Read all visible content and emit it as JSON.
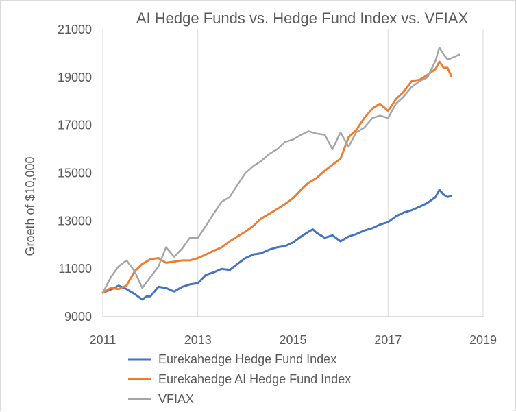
{
  "chart_data": {
    "type": "line",
    "title": "AI Hedge Funds vs. Hedge Fund Index vs. VFIAX",
    "ylabel": "Groeth of $10,000",
    "xlabel": "",
    "xlim": [
      2011,
      2019
    ],
    "ylim": [
      9000,
      21000
    ],
    "x_ticks": [
      "2011",
      "2013",
      "2015",
      "2017",
      "2019"
    ],
    "y_ticks": [
      "9000",
      "11000",
      "13000",
      "15000",
      "17000",
      "19000",
      "21000"
    ],
    "grid": "vertical",
    "legend_position": "bottom",
    "series": [
      {
        "name": "Eurekahedge Hedge Fund Index",
        "color": "#4472c4",
        "x": [
          2011.0,
          2011.25,
          2011.33,
          2011.5,
          2011.67,
          2011.83,
          2011.92,
          2012.0,
          2012.17,
          2012.33,
          2012.5,
          2012.67,
          2012.83,
          2013.0,
          2013.17,
          2013.33,
          2013.5,
          2013.67,
          2013.83,
          2014.0,
          2014.17,
          2014.33,
          2014.5,
          2014.67,
          2014.83,
          2015.0,
          2015.17,
          2015.33,
          2015.42,
          2015.5,
          2015.67,
          2015.83,
          2016.0,
          2016.17,
          2016.33,
          2016.5,
          2016.67,
          2016.83,
          2017.0,
          2017.17,
          2017.33,
          2017.5,
          2017.67,
          2017.83,
          2018.0,
          2018.08,
          2018.17,
          2018.25,
          2018.33
        ],
        "values": [
          10000,
          10200,
          10300,
          10150,
          9950,
          9720,
          9850,
          9850,
          10250,
          10200,
          10050,
          10250,
          10350,
          10400,
          10750,
          10850,
          11000,
          10950,
          11200,
          11450,
          11600,
          11650,
          11800,
          11900,
          11950,
          12100,
          12350,
          12550,
          12650,
          12500,
          12300,
          12400,
          12150,
          12350,
          12450,
          12600,
          12700,
          12850,
          12950,
          13200,
          13350,
          13450,
          13600,
          13750,
          14000,
          14300,
          14100,
          14000,
          14050
        ]
      },
      {
        "name": "Eurekahedge AI Hedge Fund Index",
        "color": "#ed7d31",
        "x": [
          2011.0,
          2011.17,
          2011.33,
          2011.5,
          2011.67,
          2011.83,
          2012.0,
          2012.17,
          2012.33,
          2012.5,
          2012.67,
          2012.83,
          2013.0,
          2013.17,
          2013.33,
          2013.5,
          2013.67,
          2013.83,
          2014.0,
          2014.17,
          2014.33,
          2014.5,
          2014.67,
          2014.83,
          2015.0,
          2015.17,
          2015.33,
          2015.5,
          2015.67,
          2015.83,
          2016.0,
          2016.17,
          2016.33,
          2016.5,
          2016.67,
          2016.83,
          2017.0,
          2017.17,
          2017.33,
          2017.5,
          2017.67,
          2017.83,
          2018.0,
          2018.08,
          2018.17,
          2018.25,
          2018.33
        ],
        "values": [
          10000,
          10200,
          10150,
          10300,
          10900,
          11200,
          11400,
          11450,
          11250,
          11300,
          11350,
          11350,
          11450,
          11600,
          11750,
          11900,
          12150,
          12350,
          12550,
          12800,
          13100,
          13300,
          13500,
          13700,
          13950,
          14300,
          14600,
          14800,
          15100,
          15350,
          15600,
          16500,
          16800,
          17300,
          17700,
          17900,
          17600,
          18100,
          18400,
          18850,
          18900,
          19100,
          19350,
          19650,
          19400,
          19400,
          19050
        ]
      },
      {
        "name": "VFIAX",
        "color": "#a5a5a5",
        "x": [
          2011.0,
          2011.17,
          2011.33,
          2011.5,
          2011.67,
          2011.83,
          2012.0,
          2012.17,
          2012.33,
          2012.5,
          2012.67,
          2012.83,
          2013.0,
          2013.17,
          2013.33,
          2013.5,
          2013.67,
          2013.83,
          2014.0,
          2014.17,
          2014.33,
          2014.5,
          2014.67,
          2014.83,
          2015.0,
          2015.17,
          2015.33,
          2015.5,
          2015.67,
          2015.83,
          2016.0,
          2016.17,
          2016.33,
          2016.5,
          2016.67,
          2016.83,
          2017.0,
          2017.17,
          2017.33,
          2017.5,
          2017.67,
          2017.83,
          2018.0,
          2018.08,
          2018.17,
          2018.25,
          2018.33,
          2018.5
        ],
        "values": [
          10000,
          10650,
          11100,
          11350,
          10900,
          10200,
          10650,
          11100,
          11900,
          11500,
          11850,
          12300,
          12300,
          12800,
          13300,
          13800,
          14000,
          14500,
          15000,
          15300,
          15500,
          15800,
          16000,
          16300,
          16400,
          16600,
          16750,
          16650,
          16600,
          16000,
          16700,
          16100,
          16700,
          16900,
          17300,
          17400,
          17300,
          17900,
          18200,
          18600,
          18850,
          19000,
          19700,
          20250,
          19950,
          19750,
          19800,
          19950
        ]
      }
    ]
  }
}
